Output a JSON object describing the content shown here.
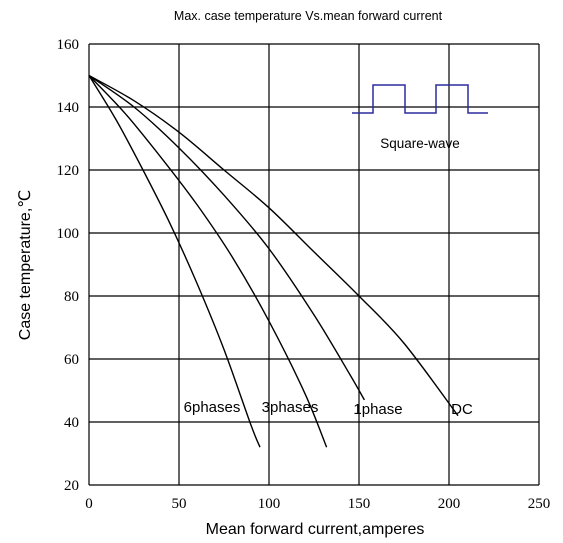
{
  "chart_data": {
    "type": "line",
    "title": "Max. case temperature Vs.mean forward current",
    "xlabel": "Mean forward current,amperes",
    "ylabel": "Case temperature,℃",
    "xlim": [
      0,
      250
    ],
    "ylim": [
      20,
      160
    ],
    "xticks": [
      0,
      50,
      100,
      150,
      200,
      250
    ],
    "yticks": [
      20,
      40,
      60,
      80,
      100,
      120,
      140,
      160
    ],
    "grid": true,
    "inset_label": "Square-wave",
    "series": [
      {
        "name": "6phases",
        "x": [
          0,
          15,
          30,
          45,
          60,
          75,
          90,
          95
        ],
        "y": [
          150,
          136,
          120,
          103,
          84,
          63,
          39,
          32
        ]
      },
      {
        "name": "3phases",
        "x": [
          0,
          20,
          40,
          60,
          80,
          100,
          120,
          132
        ],
        "y": [
          150,
          138,
          124,
          109,
          92,
          72,
          49,
          32
        ]
      },
      {
        "name": "1phase",
        "x": [
          0,
          25,
          50,
          75,
          100,
          125,
          145,
          153
        ],
        "y": [
          150,
          140,
          127,
          112,
          95,
          74,
          55,
          47
        ]
      },
      {
        "name": "DC",
        "x": [
          0,
          25,
          50,
          75,
          100,
          125,
          150,
          175,
          205
        ],
        "y": [
          150,
          142,
          132,
          120,
          108,
          94,
          80,
          65,
          42
        ]
      }
    ]
  }
}
